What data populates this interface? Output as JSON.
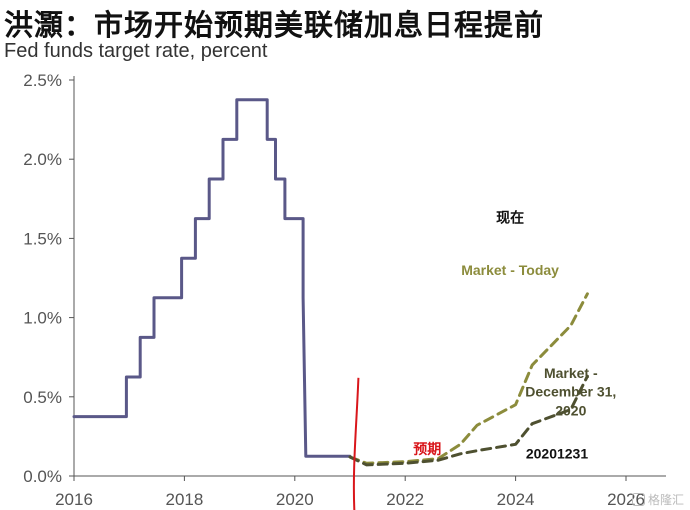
{
  "headline": "洪灝：市场开始预期美联储加息日程提前",
  "subtitle": "Fed funds target rate, percent",
  "watermark": "格隆汇",
  "colors": {
    "fed_rate": "#5a5888",
    "market_today": "#8c8c3c",
    "market_dec31": "#4e5030",
    "marker": "#d9161b",
    "axis": "#555555"
  },
  "chart_data": {
    "type": "line",
    "title": "Fed funds target rate, percent",
    "xlabel": "",
    "ylabel": "",
    "xlim": [
      2016,
      2026
    ],
    "ylim": [
      0,
      2.5
    ],
    "x_ticks": [
      "2016",
      "2018",
      "2020",
      "2022",
      "2024",
      "2026"
    ],
    "y_ticks": [
      "0.0%",
      "0.5%",
      "1.0%",
      "1.5%",
      "2.0%",
      "2.5%"
    ],
    "grid": false,
    "series": [
      {
        "key": "fed_rate",
        "style": "solid",
        "x": [
          2016.0,
          2016.95,
          2016.95,
          2017.2,
          2017.2,
          2017.45,
          2017.45,
          2017.95,
          2017.95,
          2018.2,
          2018.2,
          2018.45,
          2018.45,
          2018.7,
          2018.7,
          2018.95,
          2018.95,
          2019.5,
          2019.5,
          2019.65,
          2019.65,
          2019.82,
          2019.82,
          2020.15,
          2020.15,
          2020.2,
          2020.2,
          2021.0
        ],
        "y": [
          0.375,
          0.375,
          0.625,
          0.625,
          0.875,
          0.875,
          1.125,
          1.125,
          1.375,
          1.375,
          1.625,
          1.625,
          1.875,
          1.875,
          2.125,
          2.125,
          2.375,
          2.375,
          2.125,
          2.125,
          1.875,
          1.875,
          1.625,
          1.625,
          1.125,
          0.125,
          0.125,
          0.125
        ]
      },
      {
        "key": "market_today",
        "name": "Market - Today",
        "style": "dashed",
        "x": [
          2021.0,
          2021.3,
          2022.0,
          2022.6,
          2023.0,
          2023.3,
          2024.0,
          2024.3,
          2025.0,
          2025.3
        ],
        "y": [
          0.12,
          0.08,
          0.09,
          0.11,
          0.2,
          0.32,
          0.45,
          0.7,
          0.95,
          1.15
        ]
      },
      {
        "key": "market_dec31",
        "name": "Market - December 31, 2020",
        "style": "dashed",
        "x": [
          2021.0,
          2021.3,
          2022.0,
          2022.6,
          2023.0,
          2023.3,
          2024.0,
          2024.3,
          2025.0,
          2025.3
        ],
        "y": [
          0.12,
          0.07,
          0.08,
          0.1,
          0.14,
          0.16,
          0.2,
          0.33,
          0.42,
          0.63
        ]
      }
    ],
    "marker_x": 2021.08,
    "annotations": [
      {
        "key": "today_cn",
        "lines": [
          "现在"
        ],
        "x": 2023.9,
        "y": 1.6,
        "color": "#111111",
        "cjk": true,
        "size": 18
      },
      {
        "key": "today_label",
        "lines": [
          "Market - Today"
        ],
        "x": 2023.9,
        "y": 1.27,
        "color": "#8c8c3c",
        "cjk": false,
        "size": 15
      },
      {
        "key": "dec31_label",
        "lines": [
          "Market -",
          "December 31,",
          "2020"
        ],
        "x": 2025.0,
        "y": 0.62,
        "color": "#4e5030",
        "cjk": false,
        "size": 15
      },
      {
        "key": "date_label",
        "lines": [
          "20201231"
        ],
        "x": 2024.75,
        "y": 0.11,
        "color": "#111111",
        "cjk": false,
        "size": 17
      },
      {
        "key": "forecast_cn",
        "lines": [
          "预期"
        ],
        "x": 2022.4,
        "y": 0.14,
        "color": "#d9161b",
        "cjk": true,
        "size": 17
      }
    ]
  }
}
